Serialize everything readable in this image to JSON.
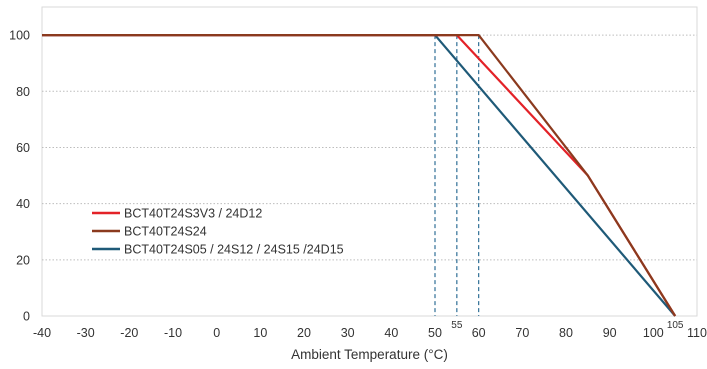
{
  "chart_data": {
    "type": "line",
    "title": "",
    "xlabel": "Ambient Temperature (°C)",
    "ylabel": "",
    "xlim": [
      -40,
      110
    ],
    "ylim": [
      0,
      110
    ],
    "x_ticks": [
      -40,
      -30,
      -20,
      -10,
      0,
      10,
      20,
      30,
      40,
      50,
      60,
      70,
      80,
      90,
      100,
      110
    ],
    "y_ticks": [
      0,
      20,
      40,
      60,
      80,
      100
    ],
    "grid": "horizontal dotted",
    "legend_position": "left",
    "series": [
      {
        "name": "BCT40T24S3V3 / 24D12",
        "color": "#e32228",
        "x": [
          -40,
          55,
          85,
          105
        ],
        "y": [
          100,
          100,
          50,
          0
        ]
      },
      {
        "name": "BCT40T24S24",
        "color": "#8b3a1e",
        "x": [
          -40,
          60,
          85,
          105
        ],
        "y": [
          100,
          100,
          50,
          0
        ]
      },
      {
        "name": "BCT40T24S05 / 24S12 / 24S15 /24D15",
        "color": "#1f5a78",
        "x": [
          -40,
          50,
          105
        ],
        "y": [
          100,
          100,
          0
        ]
      }
    ],
    "reference_lines": [
      {
        "x": 50,
        "label": ""
      },
      {
        "x": 55,
        "label": "55"
      },
      {
        "x": 60,
        "label": ""
      }
    ],
    "end_annotation": "105",
    "reference_line_color": "#2f6f96"
  }
}
